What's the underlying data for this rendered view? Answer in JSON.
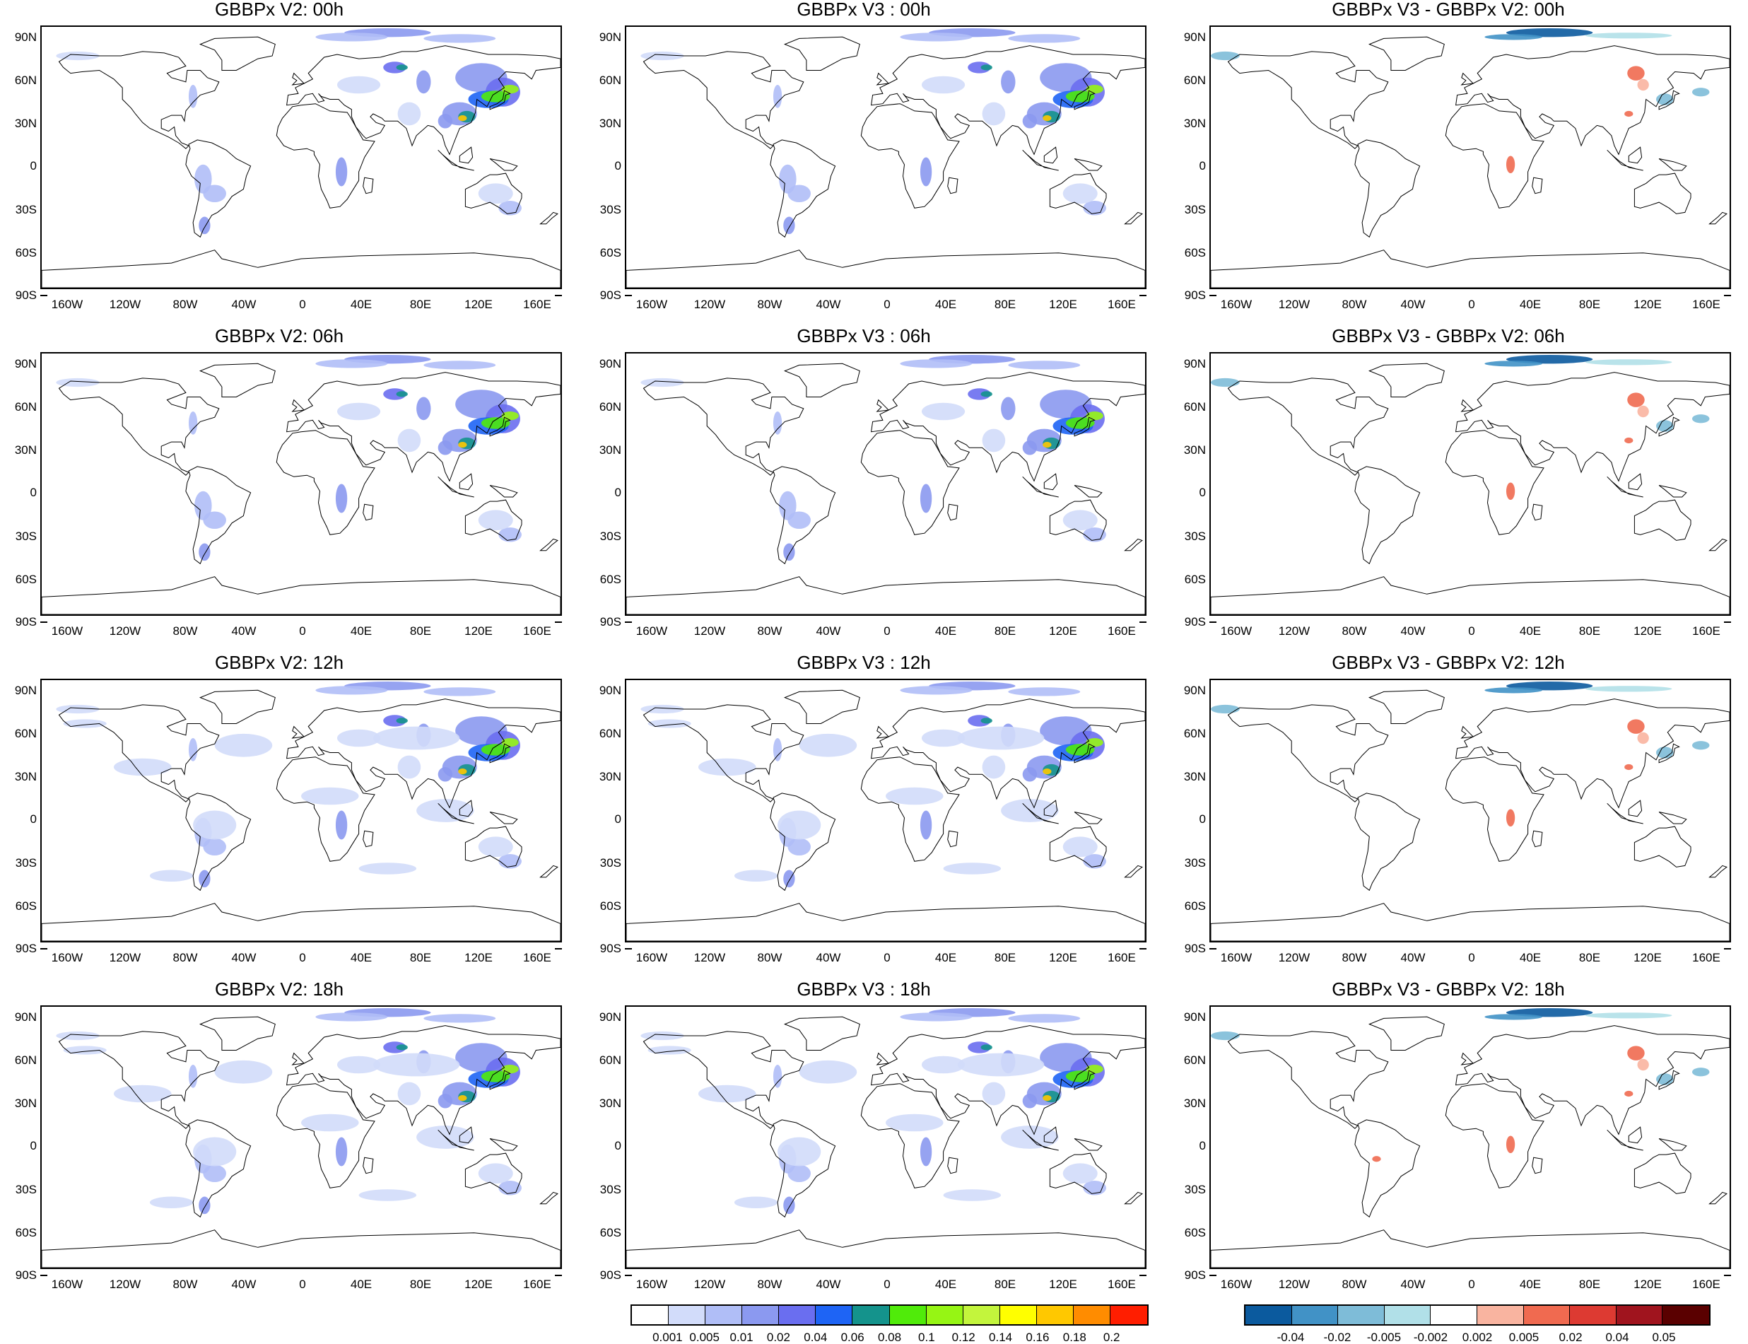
{
  "lat_labels": [
    "90N",
    "60N",
    "30N",
    "0",
    "30S",
    "60S",
    "90S"
  ],
  "lon_labels": [
    "160W",
    "120W",
    "80W",
    "40W",
    "0",
    "40E",
    "80E",
    "120E",
    "160E"
  ],
  "panels": [
    {
      "title": "GBBPx V2: 00h",
      "kind": "abs"
    },
    {
      "title": "GBBPx V3 : 00h",
      "kind": "abs"
    },
    {
      "title": "GBBPx V3 - GBBPx V2: 00h",
      "kind": "diff"
    },
    {
      "title": "GBBPx V2: 06h",
      "kind": "abs"
    },
    {
      "title": "GBBPx V3 : 06h",
      "kind": "abs"
    },
    {
      "title": "GBBPx V3 - GBBPx V2: 06h",
      "kind": "diff"
    },
    {
      "title": "GBBPx V2: 12h",
      "kind": "abs"
    },
    {
      "title": "GBBPx V3 : 12h",
      "kind": "abs"
    },
    {
      "title": "GBBPx V3 - GBBPx V2: 12h",
      "kind": "diff"
    },
    {
      "title": "GBBPx V2: 18h",
      "kind": "abs"
    },
    {
      "title": "GBBPx V3 : 18h",
      "kind": "abs"
    },
    {
      "title": "GBBPx V3 - GBBPx V2: 18h",
      "kind": "diff"
    }
  ],
  "colorbar_abs": {
    "labels": [
      "0.001",
      "0.005",
      "0.01",
      "0.02",
      "0.04",
      "0.06",
      "0.08",
      "0.1",
      "0.12",
      "0.14",
      "0.16",
      "0.18",
      "0.2"
    ],
    "colors": [
      "#ffffff",
      "#d2dcfa",
      "#b0bef7",
      "#8b99f0",
      "#6a6ef0",
      "#1e64f5",
      "#14938c",
      "#50eb0a",
      "#96f514",
      "#c3f53c",
      "#ffff00",
      "#ffc800",
      "#ff8c00",
      "#ff1e00"
    ]
  },
  "colorbar_diff": {
    "labels": [
      "-0.04",
      "-0.02",
      "-0.005",
      "-0.002",
      "0.002",
      "0.005",
      "0.02",
      "0.04",
      "0.05"
    ],
    "colors": [
      "#0b5a9e",
      "#4192c6",
      "#7ebcd8",
      "#b1e0e8",
      "#ffffff",
      "#f9b4a0",
      "#f06a50",
      "#dd3a32",
      "#a0141e",
      "#5a0000"
    ]
  }
}
